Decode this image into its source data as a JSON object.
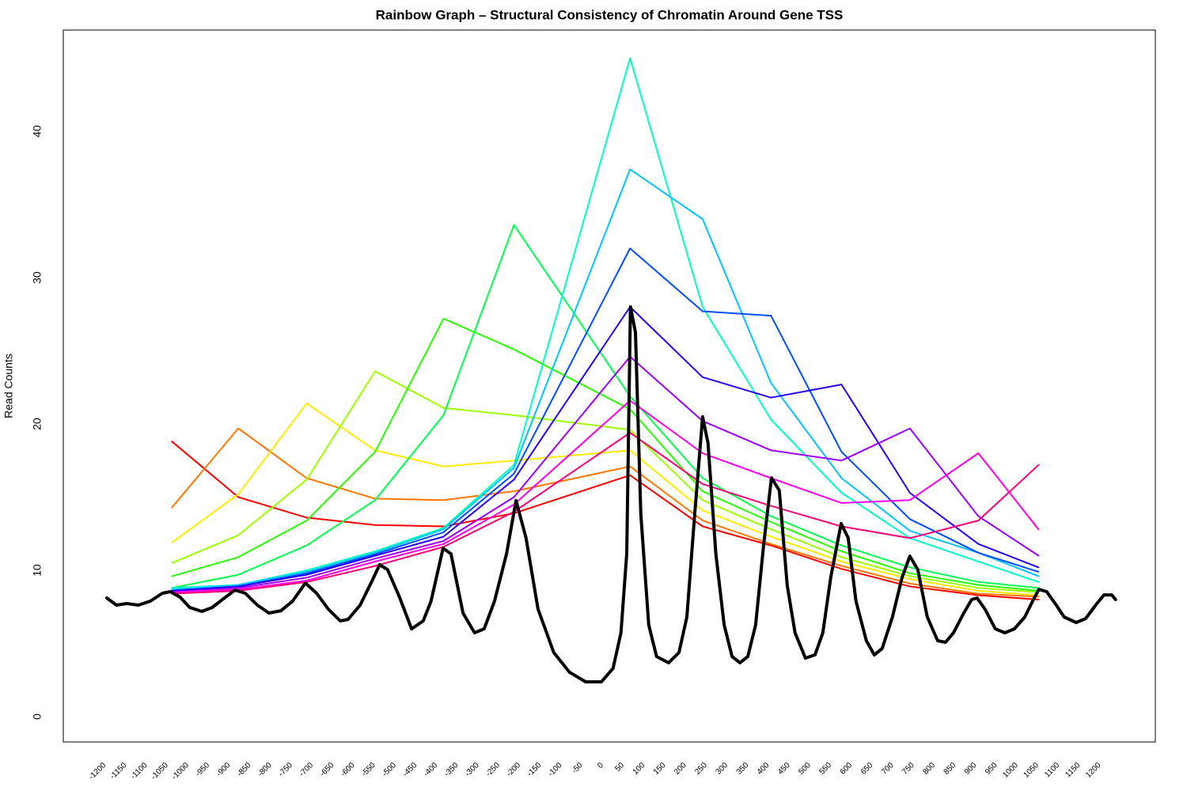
{
  "chart_data": {
    "type": "line",
    "title": "Rainbow Graph – Structural Consistency of Chromatin Around Gene TSS",
    "y_label": "Read Counts",
    "xlim": [
      -1292,
      1342
    ],
    "ylim": [
      -1.73,
      46.92
    ],
    "xticks": [
      -1200,
      -1150,
      -1100,
      -1050,
      -1000,
      -950,
      -900,
      -850,
      -800,
      -750,
      -700,
      -650,
      -600,
      -550,
      -500,
      -450,
      -400,
      -350,
      -300,
      -250,
      -200,
      -150,
      -100,
      -50,
      0,
      50,
      100,
      150,
      200,
      250,
      300,
      350,
      400,
      450,
      500,
      550,
      600,
      650,
      700,
      750,
      800,
      850,
      900,
      950,
      1000,
      1050,
      1100,
      1150,
      1200
    ],
    "yticks": [
      0,
      10,
      20,
      30,
      40
    ],
    "series": [
      {
        "color": "#FF0000",
        "width": 2,
        "x": [
          -1030,
          -870,
          -705,
          -540,
          -375,
          -205,
          75,
          250,
          415,
          585,
          750,
          915,
          1060
        ],
        "values": [
          18.8,
          15.0,
          13.6,
          13.1,
          13.0,
          13.9,
          16.5,
          13.0,
          11.7,
          10.1,
          8.9,
          8.3,
          8.0
        ]
      },
      {
        "color": "#FF7600",
        "width": 2,
        "x": [
          -1030,
          -870,
          -705,
          -540,
          -375,
          -205,
          75,
          250,
          415,
          585,
          750,
          915,
          1060
        ],
        "values": [
          14.3,
          19.7,
          16.3,
          14.9,
          14.8,
          15.4,
          17.1,
          13.4,
          11.8,
          10.3,
          9.1,
          8.4,
          8.2
        ]
      },
      {
        "color": "#FFEB00",
        "width": 2,
        "x": [
          -1030,
          -870,
          -705,
          -540,
          -375,
          -205,
          75,
          250,
          415,
          585,
          750,
          915,
          1060
        ],
        "values": [
          11.9,
          15.2,
          21.4,
          18.2,
          17.1,
          17.5,
          18.2,
          14.1,
          12.3,
          10.6,
          9.4,
          8.6,
          8.3
        ]
      },
      {
        "color": "#9DFF00",
        "width": 2,
        "x": [
          -1030,
          -870,
          -705,
          -540,
          -375,
          -205,
          75,
          250,
          415,
          585,
          750,
          915,
          1060
        ],
        "values": [
          10.5,
          12.4,
          16.2,
          23.6,
          21.1,
          20.6,
          19.6,
          14.8,
          12.8,
          10.9,
          9.6,
          8.8,
          8.5
        ]
      },
      {
        "color": "#27FF00",
        "width": 2,
        "x": [
          -1030,
          -870,
          -705,
          -540,
          -375,
          -205,
          75,
          250,
          415,
          585,
          750,
          915,
          1060
        ],
        "values": [
          9.6,
          10.9,
          13.4,
          18.1,
          27.2,
          25.1,
          21.0,
          15.4,
          13.3,
          11.3,
          9.8,
          9.0,
          8.6
        ]
      },
      {
        "color": "#00FF4E",
        "width": 2,
        "x": [
          -1030,
          -870,
          -705,
          -540,
          -375,
          -205,
          75,
          250,
          415,
          585,
          750,
          915,
          1060
        ],
        "values": [
          8.8,
          9.7,
          11.7,
          14.8,
          20.6,
          33.6,
          21.9,
          16.3,
          13.7,
          11.7,
          10.2,
          9.2,
          8.8
        ]
      },
      {
        "color": "#00FFC4",
        "width": 2,
        "x": [
          -1030,
          -870,
          -705,
          -540,
          -375,
          -205,
          75,
          250,
          415,
          585,
          750,
          915,
          1060
        ],
        "values": [
          8.8,
          9.0,
          10.0,
          11.3,
          12.9,
          17.2,
          45.0,
          28.0,
          20.3,
          15.3,
          12.2,
          10.6,
          9.2
        ]
      },
      {
        "color": "#00C4FF",
        "width": 2,
        "x": [
          -1030,
          -870,
          -705,
          -540,
          -375,
          -205,
          75,
          250,
          415,
          585,
          750,
          915,
          1060
        ],
        "values": [
          8.7,
          9.0,
          9.9,
          11.2,
          12.8,
          17.0,
          37.4,
          34.0,
          22.8,
          16.3,
          12.7,
          11.2,
          9.6
        ]
      },
      {
        "color": "#004EFF",
        "width": 2,
        "x": [
          -1030,
          -870,
          -705,
          -540,
          -375,
          -205,
          75,
          250,
          415,
          585,
          750,
          915,
          1060
        ],
        "values": [
          8.6,
          8.9,
          9.8,
          11.1,
          12.6,
          16.6,
          32.0,
          27.7,
          27.4,
          18.1,
          13.5,
          11.2,
          9.9
        ]
      },
      {
        "color": "#2700FF",
        "width": 2,
        "x": [
          -1030,
          -870,
          -705,
          -540,
          -375,
          -205,
          75,
          250,
          415,
          585,
          750,
          915,
          1060
        ],
        "values": [
          8.6,
          8.9,
          9.7,
          11.0,
          12.3,
          16.2,
          28.0,
          23.2,
          21.8,
          22.7,
          15.3,
          11.8,
          10.2
        ]
      },
      {
        "color": "#9D00FF",
        "width": 2,
        "x": [
          -1030,
          -870,
          -705,
          -540,
          -375,
          -205,
          75,
          250,
          415,
          585,
          750,
          915,
          1060
        ],
        "values": [
          8.5,
          8.8,
          9.5,
          10.8,
          12.0,
          15.0,
          24.6,
          20.2,
          18.2,
          17.5,
          19.7,
          13.7,
          11.0
        ]
      },
      {
        "color": "#FF00EB",
        "width": 2,
        "x": [
          -1030,
          -870,
          -705,
          -540,
          -375,
          -205,
          75,
          250,
          415,
          585,
          750,
          915,
          1060
        ],
        "values": [
          8.5,
          8.7,
          9.3,
          10.6,
          11.8,
          14.5,
          21.6,
          18.0,
          16.3,
          14.6,
          14.8,
          18.0,
          12.8
        ]
      },
      {
        "color": "#FF0076",
        "width": 2,
        "x": [
          -1030,
          -870,
          -705,
          -540,
          -375,
          -205,
          75,
          250,
          415,
          585,
          750,
          915,
          1060
        ],
        "values": [
          8.4,
          8.6,
          9.2,
          10.3,
          11.6,
          14.0,
          19.4,
          15.9,
          14.4,
          13.0,
          12.2,
          13.4,
          17.2
        ]
      },
      {
        "color": "#000000",
        "width": 4,
        "x": [
          -1187,
          -1164,
          -1139,
          -1111,
          -1082,
          -1053,
          -1034,
          -1010,
          -987,
          -958,
          -933,
          -906,
          -878,
          -853,
          -824,
          -796,
          -767,
          -739,
          -708,
          -681,
          -653,
          -624,
          -605,
          -576,
          -548,
          -529,
          -510,
          -481,
          -452,
          -424,
          -405,
          -376,
          -357,
          -328,
          -300,
          -277,
          -252,
          -223,
          -200,
          -176,
          -147,
          -109,
          -71,
          -32,
          6,
          34,
          53,
          67,
          76,
          88,
          101,
          120,
          139,
          168,
          193,
          212,
          231,
          250,
          263,
          282,
          302,
          321,
          340,
          359,
          378,
          397,
          416,
          435,
          454,
          473,
          498,
          521,
          540,
          559,
          584,
          601,
          620,
          645,
          664,
          683,
          708,
          731,
          750,
          769,
          792,
          817,
          836,
          855,
          880,
          899,
          912,
          931,
          956,
          979,
          1002,
          1027,
          1046,
          1061,
          1080,
          1103,
          1122,
          1151,
          1174,
          1198,
          1218,
          1237,
          1246
        ],
        "values": [
          8.11,
          7.62,
          7.73,
          7.62,
          7.89,
          8.43,
          8.54,
          8.16,
          7.46,
          7.19,
          7.46,
          8.05,
          8.65,
          8.43,
          7.62,
          7.08,
          7.24,
          7.89,
          9.13,
          8.43,
          7.35,
          6.54,
          6.65,
          7.62,
          9.24,
          10.38,
          10.05,
          8.16,
          6.0,
          6.54,
          7.89,
          11.51,
          11.13,
          7.08,
          5.73,
          6.0,
          7.89,
          11.13,
          14.76,
          12.22,
          7.35,
          4.38,
          3.03,
          2.38,
          2.38,
          3.3,
          5.73,
          11.13,
          28.0,
          26.27,
          13.84,
          6.27,
          4.11,
          3.68,
          4.38,
          6.81,
          13.84,
          20.49,
          18.7,
          11.13,
          6.27,
          4.11,
          3.68,
          4.11,
          6.27,
          11.68,
          16.32,
          15.46,
          8.97,
          5.73,
          4.0,
          4.22,
          5.73,
          9.51,
          13.19,
          12.22,
          7.89,
          5.19,
          4.22,
          4.65,
          6.81,
          9.51,
          10.97,
          10.05,
          6.81,
          5.19,
          5.08,
          5.73,
          7.08,
          8.0,
          8.11,
          7.35,
          6.0,
          5.73,
          6.0,
          6.81,
          7.89,
          8.7,
          8.54,
          7.62,
          6.81,
          6.43,
          6.7,
          7.62,
          8.32,
          8.32,
          8.0
        ]
      }
    ]
  }
}
